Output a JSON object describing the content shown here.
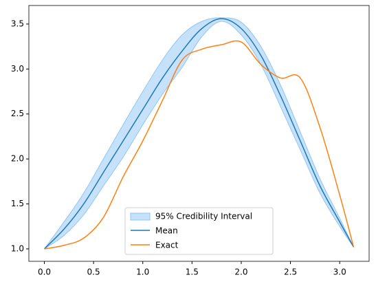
{
  "chart_data": {
    "type": "line",
    "x": [
      0,
      0.2,
      0.4,
      0.6,
      0.8,
      1.0,
      1.2,
      1.4,
      1.6,
      1.8,
      2.0,
      2.2,
      2.4,
      2.6,
      2.8,
      3.0,
      3.1416
    ],
    "series": [
      {
        "name": "95% Credibility Interval",
        "color": "#8ec5f5",
        "upper": [
          1.0,
          1.3,
          1.62,
          2.0,
          2.38,
          2.75,
          3.1,
          3.38,
          3.53,
          3.57,
          3.52,
          3.25,
          2.82,
          2.3,
          1.78,
          1.34,
          1.02
        ],
        "lower": [
          1.0,
          1.15,
          1.38,
          1.7,
          2.02,
          2.38,
          2.72,
          3.02,
          3.36,
          3.53,
          3.38,
          3.05,
          2.58,
          2.1,
          1.62,
          1.25,
          1.02
        ]
      },
      {
        "name": "Mean",
        "color": "#1f77b4",
        "values": [
          1.0,
          1.22,
          1.5,
          1.85,
          2.2,
          2.55,
          2.9,
          3.2,
          3.45,
          3.56,
          3.45,
          3.15,
          2.7,
          2.2,
          1.7,
          1.3,
          1.02
        ]
      },
      {
        "name": "Exact",
        "color": "#ff7f0e",
        "values": [
          1.0,
          1.04,
          1.12,
          1.35,
          1.8,
          2.2,
          2.65,
          3.1,
          3.22,
          3.27,
          3.3,
          3.05,
          2.9,
          2.9,
          2.35,
          1.6,
          1.02
        ]
      }
    ],
    "xlim": [
      -0.157,
      3.299
    ],
    "ylim": [
      0.862,
      3.706
    ],
    "xticks": [
      {
        "value": 0,
        "label": "0.0"
      },
      {
        "value": 0.5,
        "label": "0.5"
      },
      {
        "value": 1,
        "label": "1.0"
      },
      {
        "value": 1.5,
        "label": "1.5"
      },
      {
        "value": 2,
        "label": "2.0"
      },
      {
        "value": 2.5,
        "label": "2.5"
      },
      {
        "value": 3,
        "label": "3.0"
      }
    ],
    "yticks": [
      {
        "value": 1,
        "label": "1.0"
      },
      {
        "value": 1.5,
        "label": "1.5"
      },
      {
        "value": 2,
        "label": "2.0"
      },
      {
        "value": 2.5,
        "label": "2.5"
      },
      {
        "value": 3,
        "label": "3.0"
      },
      {
        "value": 3.5,
        "label": "3.5"
      }
    ],
    "legend": "lower center"
  }
}
